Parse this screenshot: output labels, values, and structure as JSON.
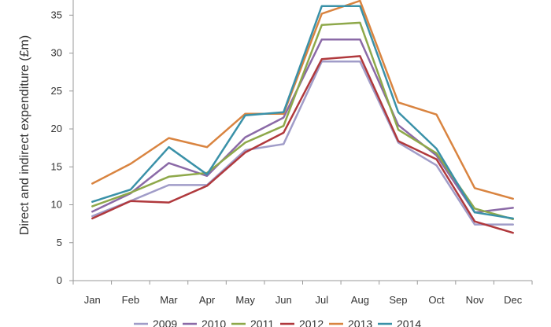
{
  "chart_data": {
    "type": "line",
    "title": "",
    "xlabel": "",
    "ylabel": "Direct and indirect expenditure (£m)",
    "ylim": [
      0,
      37
    ],
    "yticks": [
      0,
      5,
      10,
      15,
      20,
      25,
      30,
      35
    ],
    "grid": false,
    "legend_position": "bottom",
    "categories": [
      "Jan",
      "Feb",
      "Mar",
      "Apr",
      "May",
      "Jun",
      "Jul",
      "Aug",
      "Sep",
      "Oct",
      "Nov",
      "Dec"
    ],
    "series": [
      {
        "name": "2009",
        "color": "#a09cc8",
        "values": [
          8.5,
          10.5,
          12.6,
          12.6,
          17.2,
          18.0,
          28.9,
          28.9,
          18.2,
          15.2,
          7.4,
          7.4
        ]
      },
      {
        "name": "2010",
        "color": "#8b6aa7",
        "values": [
          9.1,
          11.5,
          15.5,
          13.8,
          18.9,
          21.5,
          31.8,
          31.8,
          20.5,
          16.5,
          9.0,
          9.6
        ]
      },
      {
        "name": "2011",
        "color": "#8ea84a",
        "values": [
          9.8,
          11.6,
          13.7,
          14.2,
          18.2,
          20.4,
          33.7,
          34.0,
          19.9,
          16.8,
          9.5,
          8.1
        ]
      },
      {
        "name": "2012",
        "color": "#b0393d",
        "values": [
          8.2,
          10.5,
          10.3,
          12.5,
          16.9,
          19.5,
          29.2,
          29.6,
          18.4,
          16.0,
          7.8,
          6.3
        ]
      },
      {
        "name": "2013",
        "color": "#d98440",
        "values": [
          12.8,
          15.4,
          18.8,
          17.6,
          22.0,
          22.0,
          35.2,
          36.9,
          23.5,
          21.9,
          12.2,
          10.8
        ]
      },
      {
        "name": "2014",
        "color": "#3a91a8",
        "values": [
          10.4,
          12.0,
          17.6,
          14.0,
          21.8,
          22.2,
          36.2,
          36.2,
          22.2,
          17.4,
          9.0,
          8.2
        ]
      }
    ]
  }
}
